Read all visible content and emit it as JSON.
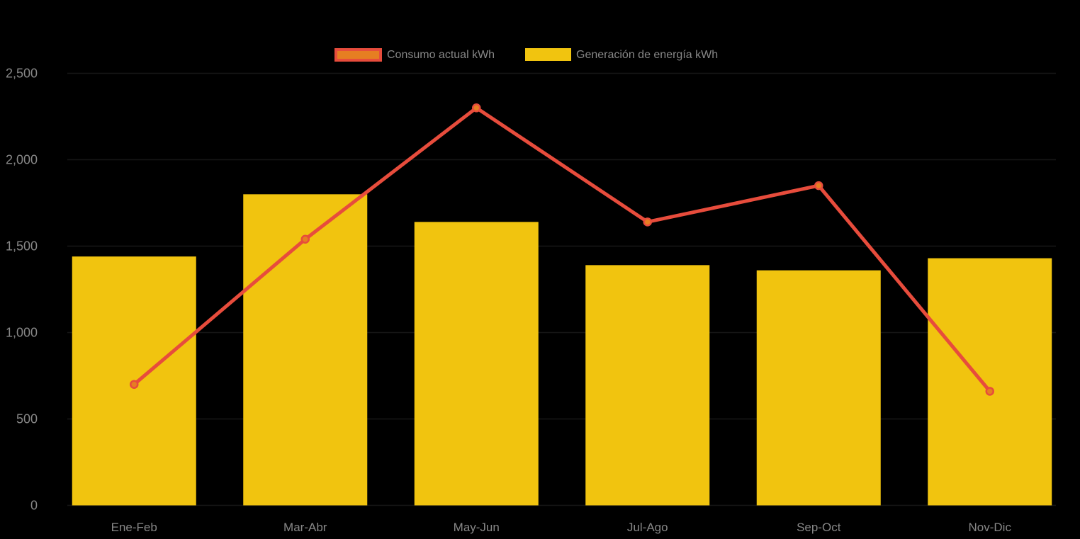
{
  "chart_data": {
    "type": "combo-bar-line",
    "title": "",
    "categories": [
      "Ene-Feb",
      "Mar-Abr",
      "May-Jun",
      "Jul-Ago",
      "Sep-Oct",
      "Nov-Dic"
    ],
    "series": [
      {
        "name": "Consumo actual kWh",
        "type": "line",
        "color": "#E74C3C",
        "marker_color": "#E67E22",
        "values": [
          700,
          1540,
          2300,
          1640,
          1850,
          660
        ]
      },
      {
        "name": "Generación de energía kWh",
        "type": "bar",
        "color": "#F1C40F",
        "values": [
          1440,
          1800,
          1640,
          1390,
          1360,
          1430
        ]
      }
    ],
    "xlabel": "",
    "ylabel": "",
    "ylim": [
      0,
      2500
    ],
    "yticks": [
      0,
      500,
      1000,
      1500,
      2000,
      2500
    ],
    "ytick_labels": [
      "0",
      "500",
      "1,000",
      "1,500",
      "2,000",
      "2,500"
    ],
    "legend_position": "top-center",
    "grid": "horizontal",
    "background_color": "#000000",
    "axis_text_color": "#878787",
    "gridline_color": "#161616"
  }
}
